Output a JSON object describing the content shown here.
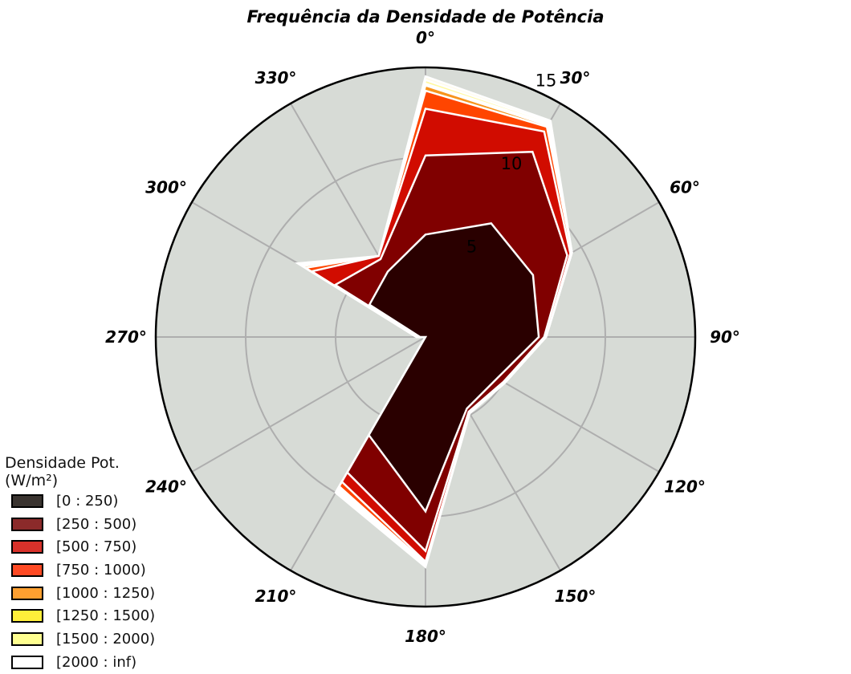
{
  "chart_data": {
    "type": "polar-stacked-area",
    "title": "Frequência da Densidade de Potência",
    "angle_labels": [
      "0°",
      "30°",
      "60°",
      "90°",
      "120°",
      "150°",
      "180°",
      "210°",
      "240°",
      "270°",
      "300°",
      "330°"
    ],
    "directions_deg": [
      0,
      30,
      60,
      90,
      120,
      150,
      180,
      210,
      240,
      270,
      300,
      330
    ],
    "radial_ticks": [
      5,
      10,
      15
    ],
    "rlim": [
      0,
      15
    ],
    "direction": "clockwise",
    "zero_location": "top",
    "grid": true,
    "legend_title": "Densidade Pot.\n(W/m²)",
    "legend_position": "lower-left",
    "series": [
      {
        "name": "[0 : 250)",
        "color": "#2a0000",
        "legend_color": "#3a3430",
        "values": [
          5.7,
          7.3,
          6.9,
          6.3,
          4.6,
          4.6,
          9.7,
          6.3,
          0.0,
          0.3,
          3.6,
          4.2
        ]
      },
      {
        "name": "[250 : 500)",
        "color": "#800000",
        "legend_color": "#8b2a2a",
        "values": [
          4.4,
          4.6,
          2.2,
          0.3,
          0.4,
          0.2,
          2.2,
          2.4,
          0.0,
          0.1,
          2.2,
          0.8
        ]
      },
      {
        "name": "[500 : 750)",
        "color": "#d10c00",
        "legend_color": "#d8312a",
        "values": [
          2.6,
          1.3,
          0.2,
          0.1,
          0.1,
          0.1,
          0.6,
          0.6,
          0.0,
          0.1,
          1.5,
          0.2
        ]
      },
      {
        "name": "[750 : 1000)",
        "color": "#ff4500",
        "legend_color": "#ff4a24",
        "values": [
          1.0,
          0.3,
          0.1,
          0.0,
          0.0,
          0.0,
          0.1,
          0.3,
          0.0,
          0.0,
          0.4,
          0.0
        ]
      },
      {
        "name": "[1000 : 1250)",
        "color": "#f7941d",
        "legend_color": "#ffa030",
        "values": [
          0.3,
          0.1,
          0.0,
          0.0,
          0.0,
          0.0,
          0.0,
          0.1,
          0.0,
          0.0,
          0.2,
          0.0
        ]
      },
      {
        "name": "[1250 : 1500)",
        "color": "#ffeb3b",
        "legend_color": "#ffef3a",
        "values": [
          0.1,
          0.1,
          0.0,
          0.0,
          0.0,
          0.0,
          0.0,
          0.1,
          0.0,
          0.0,
          0.1,
          0.0
        ]
      },
      {
        "name": "[1500 : 2000)",
        "color": "#fff9a0",
        "legend_color": "#ffff90",
        "values": [
          0.2,
          0.1,
          0.0,
          0.0,
          0.0,
          0.0,
          0.1,
          0.1,
          0.0,
          0.0,
          0.1,
          0.0
        ]
      },
      {
        "name": "[2000 : inf)",
        "color": "#fffbea",
        "legend_color": "#ffffff",
        "values": [
          0.2,
          0.1,
          0.0,
          0.0,
          0.0,
          0.0,
          0.1,
          0.1,
          0.0,
          0.0,
          0.1,
          0.0
        ]
      }
    ],
    "colors": {
      "plot_background": "#d7dbd6",
      "grid": "#aeaeae",
      "band_edge": "#ffffff",
      "frame": "#000000"
    }
  }
}
